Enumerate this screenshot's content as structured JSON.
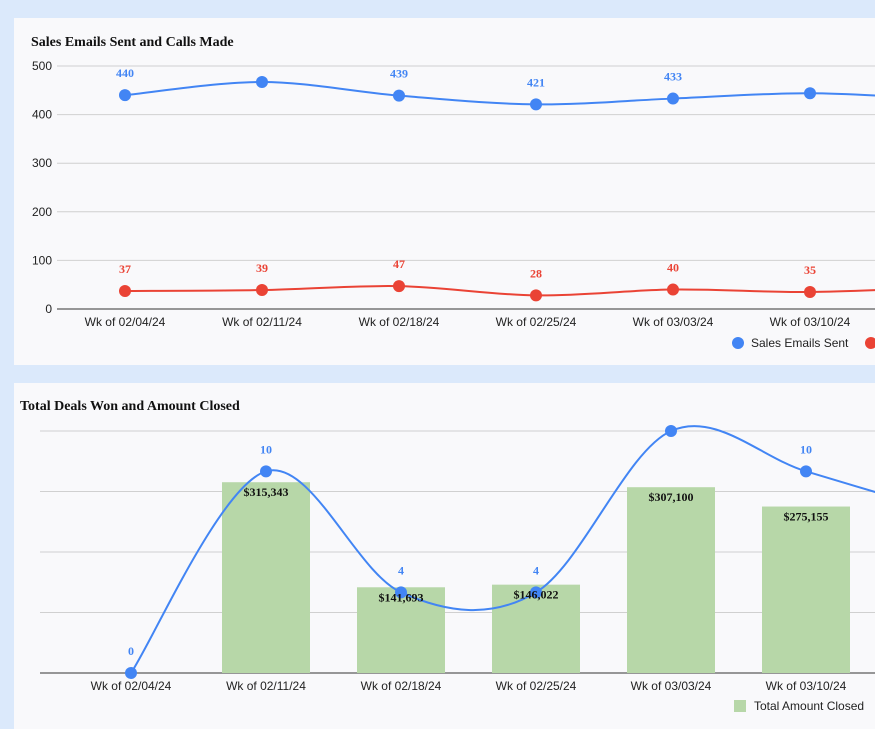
{
  "chart_data": [
    {
      "type": "line",
      "title": "Sales Emails Sent and Calls Made",
      "categories": [
        "Wk of 02/04/24",
        "Wk of 02/11/24",
        "Wk of 02/18/24",
        "Wk of 02/25/24",
        "Wk of 03/03/24",
        "Wk of 03/10/24",
        ""
      ],
      "ylim": [
        0,
        500
      ],
      "yticks": [
        0,
        100,
        200,
        300,
        400,
        500
      ],
      "grid": true,
      "legend": "bottom-right",
      "series": [
        {
          "name": "Sales Emails Sent",
          "color": "#4285f4",
          "values": [
            440,
            467,
            439,
            421,
            433,
            444,
            431
          ],
          "labels": [
            "440",
            "",
            "439",
            "421",
            "433",
            "",
            ""
          ]
        },
        {
          "name": "",
          "color": "#ea4335",
          "values": [
            37,
            39,
            47,
            28,
            40,
            35,
            45
          ],
          "labels": [
            "37",
            "39",
            "47",
            "28",
            "40",
            "35",
            ""
          ]
        }
      ]
    },
    {
      "type": "bar",
      "title": "Total Deals Won and Amount Closed",
      "categories": [
        "Wk of 02/04/24",
        "Wk of 02/11/24",
        "Wk of 02/18/24",
        "Wk of 02/25/24",
        "Wk of 03/03/24",
        "Wk of 03/10/24",
        ""
      ],
      "grid": true,
      "legend": "bottom-right",
      "bar_ylim": [
        0,
        400000
      ],
      "line_ylim": [
        0,
        12
      ],
      "series": [
        {
          "name": "Total Amount Closed",
          "kind": "bar",
          "color": "#b7d7a8",
          "values": [
            0,
            315343,
            141693,
            146022,
            307100,
            275155,
            null
          ],
          "labels": [
            "",
            "$315,343",
            "$141,693",
            "$146,022",
            "$307,100",
            "$275,155",
            ""
          ]
        },
        {
          "name": "",
          "kind": "line",
          "color": "#4285f4",
          "values": [
            0,
            10,
            4,
            4,
            12,
            10,
            8
          ],
          "labels": [
            "0",
            "10",
            "4",
            "4",
            "",
            "10",
            ""
          ]
        }
      ]
    }
  ]
}
